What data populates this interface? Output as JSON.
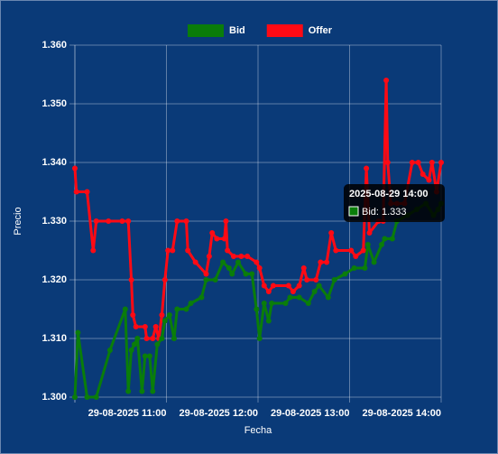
{
  "chart_data": {
    "type": "line",
    "xlabel": "Fecha",
    "ylabel": "Precio",
    "xlim": [
      "2025-08-29 10:00",
      "2025-08-29 14:00"
    ],
    "xticks": [
      {
        "value": "2025-08-29 11:00",
        "label": "29-08-2025 11:00"
      },
      {
        "value": "2025-08-29 12:00",
        "label": "29-08-2025 12:00"
      },
      {
        "value": "2025-08-29 13:00",
        "label": "29-08-2025 13:00"
      },
      {
        "value": "2025-08-29 14:00",
        "label": "29-08-2025 14:00"
      }
    ],
    "ylim": [
      1.3,
      1.36
    ],
    "yticks": [
      {
        "value": 1.3,
        "label": "1.300"
      },
      {
        "value": 1.31,
        "label": "1.310"
      },
      {
        "value": 1.32,
        "label": "1.320"
      },
      {
        "value": 1.33,
        "label": "1.330"
      },
      {
        "value": 1.34,
        "label": "1.340"
      },
      {
        "value": 1.35,
        "label": "1.350"
      },
      {
        "value": 1.36,
        "label": "1.360"
      }
    ],
    "grid": true,
    "legend": "top",
    "series": [
      {
        "name": "Bid",
        "color": "#0a7d0a",
        "x": [
          "2025-08-29 10:00",
          "2025-08-29 10:02",
          "2025-08-29 10:08",
          "2025-08-29 10:14",
          "2025-08-29 10:23",
          "2025-08-29 10:33",
          "2025-08-29 10:35",
          "2025-08-29 10:37",
          "2025-08-29 10:39",
          "2025-08-29 10:41",
          "2025-08-29 10:44",
          "2025-08-29 10:46",
          "2025-08-29 10:49",
          "2025-08-29 10:51",
          "2025-08-29 10:54",
          "2025-08-29 10:57",
          "2025-08-29 10:59",
          "2025-08-29 11:02",
          "2025-08-29 11:05",
          "2025-08-29 11:07",
          "2025-08-29 11:13",
          "2025-08-29 11:16",
          "2025-08-29 11:23",
          "2025-08-29 11:26",
          "2025-08-29 11:32",
          "2025-08-29 11:37",
          "2025-08-29 11:41",
          "2025-08-29 11:43",
          "2025-08-29 11:47",
          "2025-08-29 11:52",
          "2025-08-29 11:56",
          "2025-08-29 11:59",
          "2025-08-29 12:01",
          "2025-08-29 12:04",
          "2025-08-29 12:07",
          "2025-08-29 12:09",
          "2025-08-29 12:18",
          "2025-08-29 12:21",
          "2025-08-29 12:27",
          "2025-08-29 12:33",
          "2025-08-29 12:37",
          "2025-08-29 12:40",
          "2025-08-29 12:46",
          "2025-08-29 12:50",
          "2025-08-29 12:57",
          "2025-08-29 13:03",
          "2025-08-29 13:10",
          "2025-08-29 13:12",
          "2025-08-29 13:16",
          "2025-08-29 13:21",
          "2025-08-29 13:23",
          "2025-08-29 13:28",
          "2025-08-29 13:31",
          "2025-08-29 13:38",
          "2025-08-29 13:44",
          "2025-08-29 13:50",
          "2025-08-29 13:55",
          "2025-08-29 13:58",
          "2025-08-29 14:00"
        ],
        "values": [
          1.3,
          1.311,
          1.3,
          1.3,
          1.308,
          1.315,
          1.301,
          1.308,
          1.309,
          1.31,
          1.301,
          1.307,
          1.307,
          1.301,
          1.309,
          1.31,
          1.313,
          1.314,
          1.31,
          1.315,
          1.315,
          1.316,
          1.317,
          1.32,
          1.32,
          1.323,
          1.322,
          1.321,
          1.323,
          1.321,
          1.321,
          1.315,
          1.31,
          1.316,
          1.313,
          1.316,
          1.316,
          1.317,
          1.317,
          1.316,
          1.318,
          1.319,
          1.317,
          1.32,
          1.321,
          1.322,
          1.322,
          1.326,
          1.323,
          1.326,
          1.327,
          1.327,
          1.33,
          1.331,
          1.332,
          1.333,
          1.331,
          1.332,
          1.333
        ]
      },
      {
        "name": "Offer",
        "color": "#ff0a14",
        "x": [
          "2025-08-29 10:00",
          "2025-08-29 10:01",
          "2025-08-29 10:08",
          "2025-08-29 10:12",
          "2025-08-29 10:14",
          "2025-08-29 10:22",
          "2025-08-29 10:31",
          "2025-08-29 10:35",
          "2025-08-29 10:37",
          "2025-08-29 10:38",
          "2025-08-29 10:40",
          "2025-08-29 10:46",
          "2025-08-29 10:47",
          "2025-08-29 10:51",
          "2025-08-29 10:53",
          "2025-08-29 10:55",
          "2025-08-29 10:57",
          "2025-08-29 10:59",
          "2025-08-29 11:01",
          "2025-08-29 11:04",
          "2025-08-29 11:07",
          "2025-08-29 11:13",
          "2025-08-29 11:14",
          "2025-08-29 11:19",
          "2025-08-29 11:26",
          "2025-08-29 11:28",
          "2025-08-29 11:30",
          "2025-08-29 11:33",
          "2025-08-29 11:38",
          "2025-08-29 11:39",
          "2025-08-29 11:40",
          "2025-08-29 11:44",
          "2025-08-29 11:49",
          "2025-08-29 11:53",
          "2025-08-29 11:59",
          "2025-08-29 12:01",
          "2025-08-29 12:04",
          "2025-08-29 12:07",
          "2025-08-29 12:10",
          "2025-08-29 12:20",
          "2025-08-29 12:23",
          "2025-08-29 12:27",
          "2025-08-29 12:30",
          "2025-08-29 12:32",
          "2025-08-29 12:38",
          "2025-08-29 12:41",
          "2025-08-29 12:45",
          "2025-08-29 12:48",
          "2025-08-29 12:51",
          "2025-08-29 13:01",
          "2025-08-29 13:04",
          "2025-08-29 13:09",
          "2025-08-29 13:11",
          "2025-08-29 13:13",
          "2025-08-29 13:19",
          "2025-08-29 13:22",
          "2025-08-29 13:24",
          "2025-08-29 13:25",
          "2025-08-29 13:27",
          "2025-08-29 13:31",
          "2025-08-29 13:36",
          "2025-08-29 13:41",
          "2025-08-29 13:45",
          "2025-08-29 13:48",
          "2025-08-29 13:52",
          "2025-08-29 13:54",
          "2025-08-29 13:57",
          "2025-08-29 14:00"
        ],
        "values": [
          1.339,
          1.335,
          1.335,
          1.325,
          1.33,
          1.33,
          1.33,
          1.33,
          1.32,
          1.314,
          1.312,
          1.312,
          1.31,
          1.31,
          1.312,
          1.31,
          1.314,
          1.32,
          1.325,
          1.325,
          1.33,
          1.33,
          1.325,
          1.323,
          1.321,
          1.324,
          1.328,
          1.327,
          1.327,
          1.33,
          1.325,
          1.324,
          1.324,
          1.324,
          1.323,
          1.322,
          1.319,
          1.318,
          1.319,
          1.319,
          1.318,
          1.319,
          1.322,
          1.32,
          1.32,
          1.323,
          1.323,
          1.328,
          1.325,
          1.325,
          1.324,
          1.325,
          1.339,
          1.328,
          1.33,
          1.33,
          1.354,
          1.34,
          1.333,
          1.333,
          1.333,
          1.34,
          1.34,
          1.338,
          1.337,
          1.34,
          1.335,
          1.34
        ]
      }
    ],
    "tooltip": {
      "title": "2025-08-29 14:00",
      "label": "Bid: 1.333"
    }
  }
}
